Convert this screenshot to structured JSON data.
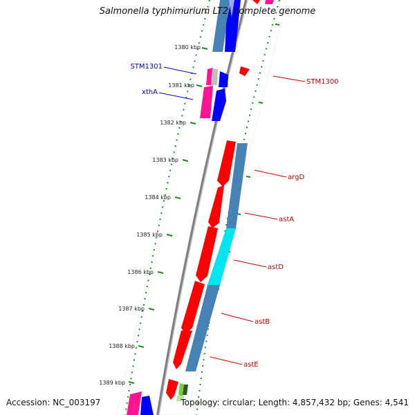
{
  "header": {
    "title": "Salmonella typhimurium LT2, complete genome"
  },
  "footer": {
    "accession": "Accession: NC_003197",
    "summary": "Topology: circular; Length: 4,857,432 bp; Genes: 4,541"
  },
  "ticks": [
    {
      "label": "1380 kbp"
    },
    {
      "label": "1381 kbp"
    },
    {
      "label": "1382 kbp"
    },
    {
      "label": "1383 kbp"
    },
    {
      "label": "1384 kbp"
    },
    {
      "label": "1385 kbp"
    },
    {
      "label": "1386 kbp"
    },
    {
      "label": "1387 kbp"
    },
    {
      "label": "1388 kbp"
    },
    {
      "label": "1389 kbp"
    }
  ],
  "inner_gene_labels": [
    {
      "label": "STM1301",
      "color": "#0000cc"
    },
    {
      "label": "xthA",
      "color": "#0000cc"
    }
  ],
  "outer_gene_labels": [
    {
      "label": "STM1300",
      "color": "#cc0000"
    },
    {
      "label": "argD",
      "color": "#cc0000"
    },
    {
      "label": "astA",
      "color": "#cc0000"
    },
    {
      "label": "astD",
      "color": "#cc0000"
    },
    {
      "label": "astB",
      "color": "#cc0000"
    },
    {
      "label": "astE",
      "color": "#cc0000"
    }
  ],
  "colors": {
    "backbone": "#808080",
    "tick": "#1a8a1a",
    "forward_gene": "#ff0000",
    "reverse_gene": "#0000ff",
    "magenta_gene": "#ff1493",
    "cog_bar": "#4682b4",
    "cog_highlight": "#00e5ee"
  }
}
